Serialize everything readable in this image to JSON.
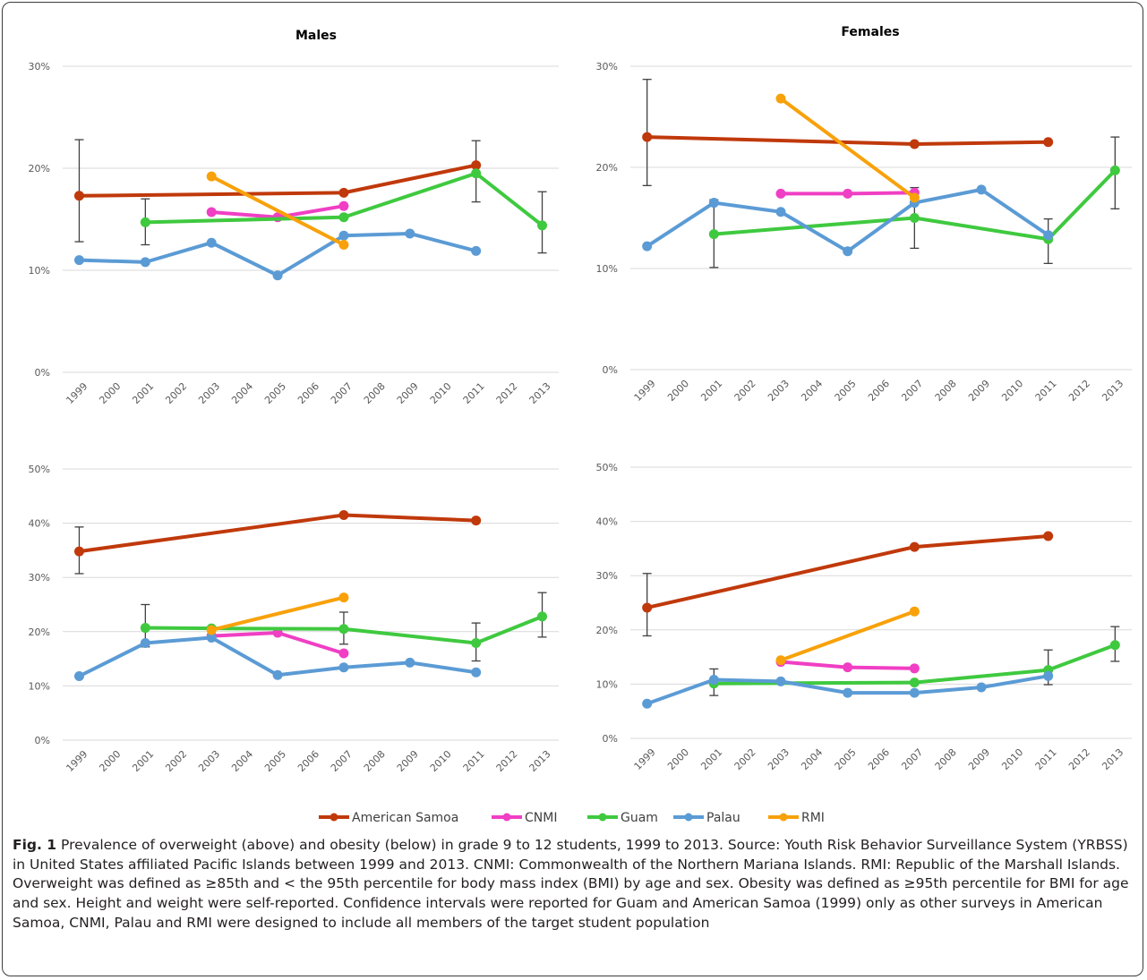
{
  "colors": {
    "american_samoa": "#C0390B",
    "cnmi": "#F03FC4",
    "guam": "#3FC93F",
    "palau": "#5B9BD5",
    "rmi": "#F8A10A",
    "grid": "#d9d9d9",
    "errorbar": "#404040"
  },
  "years": [
    "1999",
    "2000",
    "2001",
    "2002",
    "2003",
    "2004",
    "2005",
    "2006",
    "2007",
    "2008",
    "2009",
    "2010",
    "2011",
    "2012",
    "2013"
  ],
  "legend": [
    {
      "key": "american_samoa",
      "label": "American Samoa"
    },
    {
      "key": "cnmi",
      "label": "CNMI"
    },
    {
      "key": "guam",
      "label": "Guam"
    },
    {
      "key": "palau",
      "label": "Palau"
    },
    {
      "key": "rmi",
      "label": "RMI"
    }
  ],
  "caption": {
    "label": "Fig. 1",
    "text": " Prevalence of overweight (above) and obesity (below) in grade 9 to 12 students, 1999 to 2013. Source: Youth Risk Behavior Surveillance System (YRBSS) in United States affiliated Pacific Islands between 1999 and 2013. CNMI: Commonwealth of the Northern Mariana Islands. RMI: Republic of the Marshall Islands. Overweight was defined as ≥85th and < the 95th percentile for body mass index (BMI) by age and sex. Obesity was defined as ≥95th percentile for BMI for age and sex. Height and weight were self-reported. Confidence intervals were reported for Guam and American Samoa (1999) only as other surveys in American Samoa, CNMI, Palau and RMI were designed to include all members of the target student population"
  },
  "chart_data": [
    {
      "type": "line",
      "title": "Males",
      "ylim": [
        0,
        30
      ],
      "yticks": [
        0,
        10,
        20,
        30
      ],
      "ytick_labels": [
        "0%",
        "10%",
        "20%",
        "30%"
      ],
      "series": [
        {
          "name": "American Samoa",
          "key": "american_samoa",
          "points": [
            [
              "1999",
              17.3
            ],
            [
              "2007",
              17.6
            ],
            [
              "2011",
              20.3
            ]
          ]
        },
        {
          "name": "CNMI",
          "key": "cnmi",
          "points": [
            [
              "2003",
              15.7
            ],
            [
              "2005",
              15.2
            ],
            [
              "2007",
              16.3
            ]
          ]
        },
        {
          "name": "Guam",
          "key": "guam",
          "points": [
            [
              "2001",
              14.7
            ],
            [
              "2007",
              15.2
            ],
            [
              "2011",
              19.5
            ],
            [
              "2013",
              14.4
            ]
          ]
        },
        {
          "name": "Palau",
          "key": "palau",
          "points": [
            [
              "1999",
              11.0
            ],
            [
              "2001",
              10.8
            ],
            [
              "2003",
              12.7
            ],
            [
              "2005",
              9.5
            ],
            [
              "2007",
              13.4
            ],
            [
              "2009",
              13.6
            ],
            [
              "2011",
              11.9
            ]
          ]
        },
        {
          "name": "RMI",
          "key": "rmi",
          "points": [
            [
              "2003",
              19.2
            ],
            [
              "2007",
              12.5
            ]
          ]
        }
      ],
      "error_bars": [
        {
          "x": "1999",
          "low": 12.8,
          "high": 22.8
        },
        {
          "x": "2001",
          "low": 12.5,
          "high": 17.0
        },
        {
          "x": "2011",
          "low": 16.7,
          "high": 22.7
        },
        {
          "x": "2013",
          "low": 11.7,
          "high": 17.7
        }
      ]
    },
    {
      "type": "line",
      "title": "Females",
      "ylim": [
        0,
        30
      ],
      "yticks": [
        0,
        10,
        20,
        30
      ],
      "ytick_labels": [
        "0%",
        "10%",
        "20%",
        "30%"
      ],
      "series": [
        {
          "name": "American Samoa",
          "key": "american_samoa",
          "points": [
            [
              "1999",
              23.0
            ],
            [
              "2007",
              22.3
            ],
            [
              "2011",
              22.5
            ]
          ]
        },
        {
          "name": "CNMI",
          "key": "cnmi",
          "points": [
            [
              "2003",
              17.4
            ],
            [
              "2005",
              17.4
            ],
            [
              "2007",
              17.5
            ]
          ]
        },
        {
          "name": "Guam",
          "key": "guam",
          "points": [
            [
              "2001",
              13.4
            ],
            [
              "2007",
              15.0
            ],
            [
              "2011",
              12.9
            ],
            [
              "2013",
              19.7
            ]
          ]
        },
        {
          "name": "Palau",
          "key": "palau",
          "points": [
            [
              "1999",
              12.2
            ],
            [
              "2001",
              16.5
            ],
            [
              "2003",
              15.6
            ],
            [
              "2005",
              11.7
            ],
            [
              "2007",
              16.5
            ],
            [
              "2009",
              17.8
            ],
            [
              "2011",
              13.3
            ]
          ]
        },
        {
          "name": "RMI",
          "key": "rmi",
          "points": [
            [
              "2003",
              26.8
            ],
            [
              "2007",
              17.0
            ]
          ]
        }
      ],
      "error_bars": [
        {
          "x": "1999",
          "low": 18.2,
          "high": 28.7
        },
        {
          "x": "2001",
          "low": 10.1,
          "high": 16.8
        },
        {
          "x": "2007",
          "low": 12.0,
          "high": 18.0
        },
        {
          "x": "2011",
          "low": 10.5,
          "high": 14.9
        },
        {
          "x": "2013",
          "low": 15.9,
          "high": 23.0
        }
      ]
    },
    {
      "type": "line",
      "title": "",
      "ylim": [
        0,
        50
      ],
      "yticks": [
        0,
        10,
        20,
        30,
        40,
        50
      ],
      "ytick_labels": [
        "0%",
        "10%",
        "20%",
        "30%",
        "40%",
        "50%"
      ],
      "series": [
        {
          "name": "American Samoa",
          "key": "american_samoa",
          "points": [
            [
              "1999",
              34.8
            ],
            [
              "2007",
              41.5
            ],
            [
              "2011",
              40.5
            ]
          ]
        },
        {
          "name": "CNMI",
          "key": "cnmi",
          "points": [
            [
              "2003",
              19.2
            ],
            [
              "2005",
              19.8
            ],
            [
              "2007",
              16.0
            ]
          ]
        },
        {
          "name": "Guam",
          "key": "guam",
          "points": [
            [
              "2001",
              20.7
            ],
            [
              "2003",
              20.6
            ],
            [
              "2007",
              20.5
            ],
            [
              "2011",
              17.9
            ],
            [
              "2013",
              22.8
            ]
          ]
        },
        {
          "name": "Palau",
          "key": "palau",
          "points": [
            [
              "1999",
              11.8
            ],
            [
              "2001",
              17.9
            ],
            [
              "2003",
              18.9
            ],
            [
              "2005",
              12.0
            ],
            [
              "2007",
              13.4
            ],
            [
              "2009",
              14.3
            ],
            [
              "2011",
              12.5
            ]
          ]
        },
        {
          "name": "RMI",
          "key": "rmi",
          "points": [
            [
              "2003",
              20.3
            ],
            [
              "2007",
              26.3
            ]
          ]
        }
      ],
      "error_bars": [
        {
          "x": "1999",
          "low": 30.7,
          "high": 39.3
        },
        {
          "x": "2001",
          "low": 17.2,
          "high": 25.0
        },
        {
          "x": "2007",
          "low": 17.7,
          "high": 23.6
        },
        {
          "x": "2011",
          "low": 14.6,
          "high": 21.6
        },
        {
          "x": "2013",
          "low": 19.0,
          "high": 27.2
        }
      ]
    },
    {
      "type": "line",
      "title": "",
      "ylim": [
        0,
        50
      ],
      "yticks": [
        0,
        10,
        20,
        30,
        40,
        50
      ],
      "ytick_labels": [
        "0%",
        "10%",
        "20%",
        "30%",
        "40%",
        "50%"
      ],
      "series": [
        {
          "name": "American Samoa",
          "key": "american_samoa",
          "points": [
            [
              "1999",
              24.1
            ],
            [
              "2007",
              35.3
            ],
            [
              "2011",
              37.3
            ]
          ]
        },
        {
          "name": "CNMI",
          "key": "cnmi",
          "points": [
            [
              "2003",
              14.1
            ],
            [
              "2005",
              13.1
            ],
            [
              "2007",
              12.9
            ]
          ]
        },
        {
          "name": "Guam",
          "key": "guam",
          "points": [
            [
              "2001",
              10.1
            ],
            [
              "2007",
              10.3
            ],
            [
              "2011",
              12.6
            ],
            [
              "2013",
              17.2
            ]
          ]
        },
        {
          "name": "Palau",
          "key": "palau",
          "points": [
            [
              "1999",
              6.4
            ],
            [
              "2001",
              10.8
            ],
            [
              "2003",
              10.5
            ],
            [
              "2005",
              8.4
            ],
            [
              "2007",
              8.4
            ],
            [
              "2009",
              9.4
            ],
            [
              "2011",
              11.5
            ]
          ]
        },
        {
          "name": "RMI",
          "key": "rmi",
          "points": [
            [
              "2003",
              14.4
            ],
            [
              "2007",
              23.4
            ]
          ]
        }
      ],
      "error_bars": [
        {
          "x": "1999",
          "low": 18.9,
          "high": 30.4
        },
        {
          "x": "2001",
          "low": 7.9,
          "high": 12.8
        },
        {
          "x": "2011",
          "low": 9.9,
          "high": 16.3
        },
        {
          "x": "2013",
          "low": 14.2,
          "high": 20.6
        }
      ]
    }
  ]
}
